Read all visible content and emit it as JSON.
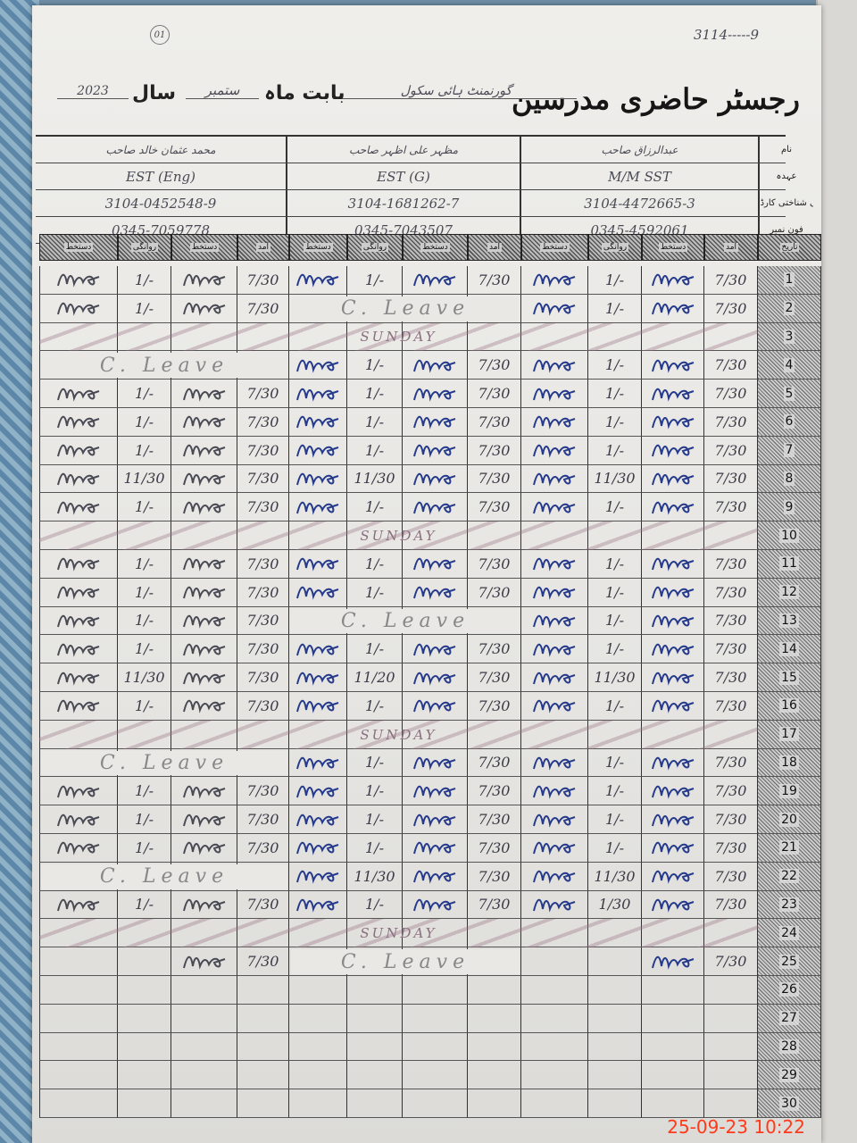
{
  "register": {
    "title": "رجسٹر حاضری مدرسین",
    "month_label": "بابت ماہ",
    "month_value": "ستمبر",
    "year_label": "سال",
    "year_value": "2023",
    "school_value": "گورنمنٹ ہائی سکول",
    "corner_note": "3114-----9"
  },
  "info_labels": {
    "name": "نام",
    "designation": "عہدہ",
    "cnic": "قومی شناختی کارڈ نمبر",
    "phone": "فون نمبر"
  },
  "teachers": [
    {
      "index": "01",
      "name": "عبدالرزاق صاحب",
      "designation": "M/M   SST",
      "cnic": "3104-4472665-3",
      "phone": "0345-4592061",
      "signature_color": "#263a8c"
    },
    {
      "index": "02",
      "name": "مظہر علی اظہر صاحب",
      "designation": "EST (G)",
      "cnic": "3104-1681262-7",
      "phone": "0345-7043507",
      "signature_color": "#263a8c"
    },
    {
      "index": "03",
      "name": "محمد عثمان خالد صاحب",
      "designation": "EST (Eng)",
      "cnic": "3104-0452548-9",
      "phone": "0345-7059778",
      "signature_color": "#4a4a55"
    }
  ],
  "column_headers": {
    "arrival": "آمد",
    "signature": "دستخط",
    "departure": "روانگی",
    "date": "تاریخ"
  },
  "labels": {
    "sunday": "SUNDAY",
    "leave": "C. Leave"
  },
  "days": [
    {
      "day": "1",
      "t": [
        [
          "7/30",
          "1/-"
        ],
        [
          "7/30",
          "1/-"
        ],
        [
          "7/30",
          "1/-"
        ]
      ]
    },
    {
      "day": "2",
      "t": [
        [
          "7/30",
          "1/-"
        ],
        "leave",
        [
          "7/30",
          "1/-"
        ]
      ]
    },
    {
      "day": "3",
      "sunday": true
    },
    {
      "day": "4",
      "t": [
        [
          "7/30",
          "1/-"
        ],
        [
          "7/30",
          "1/-"
        ],
        "leave"
      ]
    },
    {
      "day": "5",
      "t": [
        [
          "7/30",
          "1/-"
        ],
        [
          "7/30",
          "1/-"
        ],
        [
          "7/30",
          "1/-"
        ]
      ]
    },
    {
      "day": "6",
      "t": [
        [
          "7/30",
          "1/-"
        ],
        [
          "7/30",
          "1/-"
        ],
        [
          "7/30",
          "1/-"
        ]
      ]
    },
    {
      "day": "7",
      "t": [
        [
          "7/30",
          "1/-"
        ],
        [
          "7/30",
          "1/-"
        ],
        [
          "7/30",
          "1/-"
        ]
      ]
    },
    {
      "day": "8",
      "t": [
        [
          "7/30",
          "11/30"
        ],
        [
          "7/30",
          "11/30"
        ],
        [
          "7/30",
          "11/30"
        ]
      ]
    },
    {
      "day": "9",
      "t": [
        [
          "7/30",
          "1/-"
        ],
        [
          "7/30",
          "1/-"
        ],
        [
          "7/30",
          "1/-"
        ]
      ]
    },
    {
      "day": "10",
      "sunday": true
    },
    {
      "day": "11",
      "t": [
        [
          "7/30",
          "1/-"
        ],
        [
          "7/30",
          "1/-"
        ],
        [
          "7/30",
          "1/-"
        ]
      ]
    },
    {
      "day": "12",
      "t": [
        [
          "7/30",
          "1/-"
        ],
        [
          "7/30",
          "1/-"
        ],
        [
          "7/30",
          "1/-"
        ]
      ]
    },
    {
      "day": "13",
      "t": [
        [
          "7/30",
          "1/-"
        ],
        "leave",
        [
          "7/30",
          "1/-"
        ]
      ]
    },
    {
      "day": "14",
      "t": [
        [
          "7/30",
          "1/-"
        ],
        [
          "7/30",
          "1/-"
        ],
        [
          "7/30",
          "1/-"
        ]
      ]
    },
    {
      "day": "15",
      "t": [
        [
          "7/30",
          "11/30"
        ],
        [
          "7/30",
          "11/20"
        ],
        [
          "7/30",
          "11/30"
        ]
      ]
    },
    {
      "day": "16",
      "t": [
        [
          "7/30",
          "1/-"
        ],
        [
          "7/30",
          "1/-"
        ],
        [
          "7/30",
          "1/-"
        ]
      ]
    },
    {
      "day": "17",
      "sunday": true
    },
    {
      "day": "18",
      "t": [
        [
          "7/30",
          "1/-"
        ],
        [
          "7/30",
          "1/-"
        ],
        "leave"
      ]
    },
    {
      "day": "19",
      "t": [
        [
          "7/30",
          "1/-"
        ],
        [
          "7/30",
          "1/-"
        ],
        [
          "7/30",
          "1/-"
        ]
      ]
    },
    {
      "day": "20",
      "t": [
        [
          "7/30",
          "1/-"
        ],
        [
          "7/30",
          "1/-"
        ],
        [
          "7/30",
          "1/-"
        ]
      ]
    },
    {
      "day": "21",
      "t": [
        [
          "7/30",
          "1/-"
        ],
        [
          "7/30",
          "1/-"
        ],
        [
          "7/30",
          "1/-"
        ]
      ]
    },
    {
      "day": "22",
      "t": [
        [
          "7/30",
          "11/30"
        ],
        [
          "7/30",
          "11/30"
        ],
        "leave"
      ]
    },
    {
      "day": "23",
      "t": [
        [
          "7/30",
          "1/30"
        ],
        [
          "7/30",
          "1/-"
        ],
        [
          "7/30",
          "1/-"
        ]
      ]
    },
    {
      "day": "24",
      "sunday": true
    },
    {
      "day": "25",
      "t": [
        [
          "7/30",
          ""
        ],
        "leave",
        [
          "7/30",
          ""
        ]
      ]
    },
    {
      "day": "26"
    },
    {
      "day": "27"
    },
    {
      "day": "28"
    },
    {
      "day": "29"
    },
    {
      "day": "30"
    }
  ],
  "camera_timestamp": "25-09-23  10:22",
  "colors": {
    "paper": "#ecebe8",
    "ink_blue": "#263a8c",
    "ink_grey": "#4a4a55",
    "timestamp": "#ff3a1a"
  }
}
